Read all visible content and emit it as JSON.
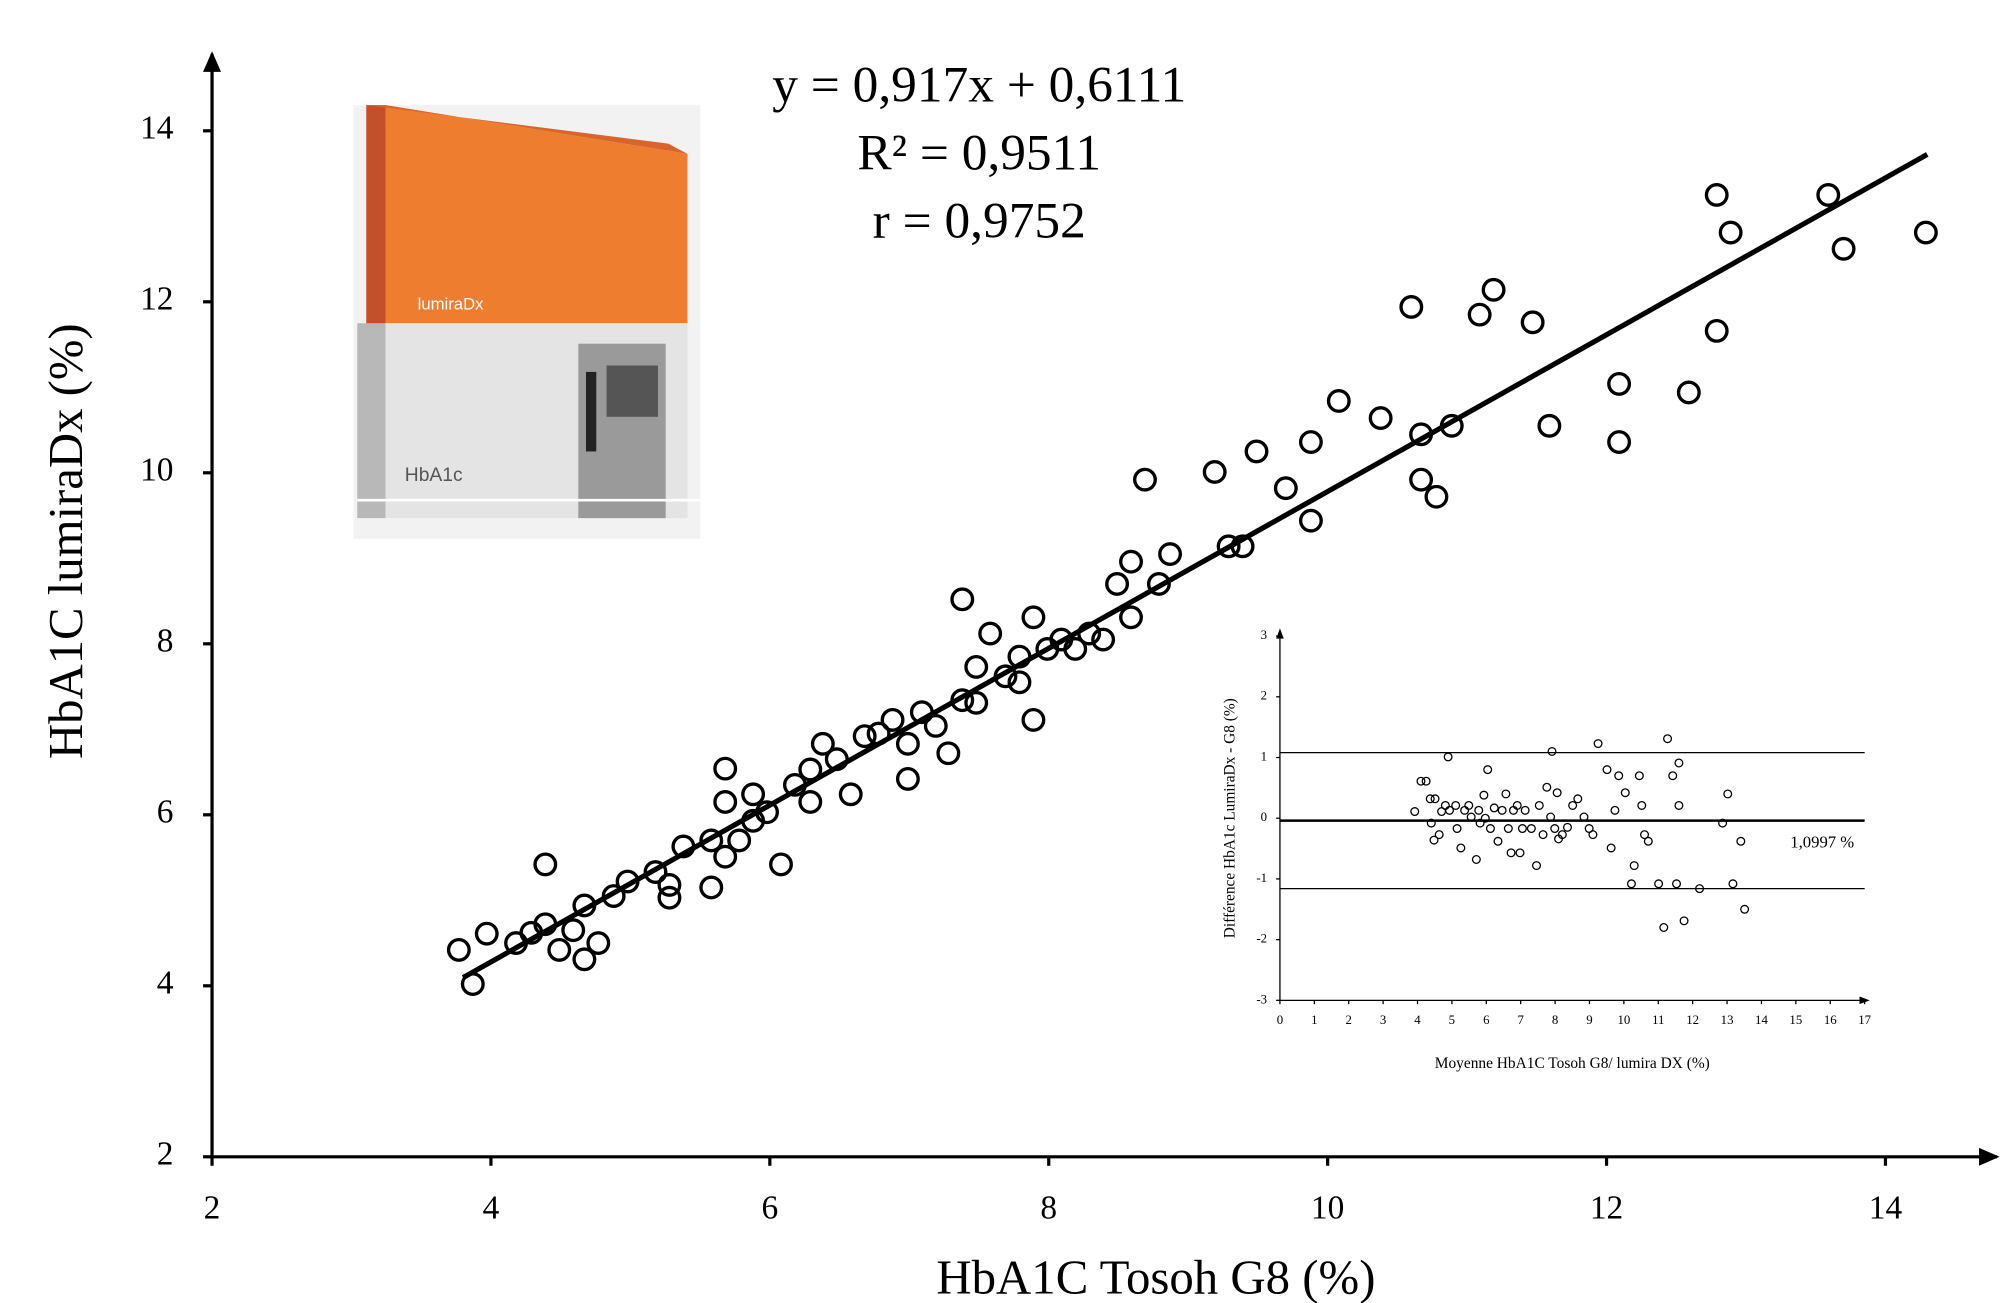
{
  "chart_data": [
    {
      "type": "scatter",
      "annotations": [
        "y = 0,917x + 0,6111",
        "R² = 0,9511",
        "r = 0,9752"
      ],
      "x_label": "HbA1C Tosoh G8 (%)",
      "y_label": "HbA1C lumiraDx (%)",
      "xlim": [
        2,
        14.8
      ],
      "ylim": [
        2,
        14.9
      ],
      "xticks": [
        2,
        4,
        6,
        8,
        10,
        12,
        14
      ],
      "yticks": [
        2,
        4,
        6,
        8,
        10,
        12,
        14
      ],
      "color": "#000000",
      "marker": "open-circle",
      "fit": {
        "slope": 0.917,
        "intercept": 0.6111,
        "x_range": [
          3.8,
          14.3
        ]
      },
      "x": [
        3.77,
        3.87,
        3.97,
        4.18,
        4.29,
        4.39,
        4.39,
        4.49,
        4.59,
        4.67,
        4.67,
        4.77,
        4.88,
        4.98,
        5.18,
        5.28,
        5.28,
        5.38,
        5.58,
        5.58,
        5.68,
        5.68,
        5.68,
        5.78,
        5.88,
        5.88,
        5.98,
        6.08,
        6.18,
        6.29,
        6.29,
        6.38,
        6.48,
        6.58,
        6.68,
        6.78,
        6.88,
        6.99,
        6.99,
        7.09,
        7.19,
        7.28,
        7.38,
        7.38,
        7.48,
        7.48,
        7.58,
        7.69,
        7.79,
        7.79,
        7.89,
        7.89,
        7.99,
        8.09,
        8.19,
        8.29,
        8.39,
        8.49,
        8.59,
        8.59,
        8.69,
        8.79,
        8.87,
        9.19,
        9.29,
        9.39,
        9.49,
        9.7,
        9.88,
        9.88,
        10.08,
        10.38,
        10.6,
        10.67,
        10.67,
        10.78,
        10.89,
        11.09,
        11.19,
        11.47,
        11.59,
        12.09,
        12.09,
        12.59,
        12.79,
        12.79,
        12.89,
        13.59,
        13.7,
        14.29
      ],
      "values": [
        4.42,
        4.02,
        4.61,
        4.5,
        4.62,
        5.42,
        4.72,
        4.42,
        4.65,
        4.31,
        4.94,
        4.5,
        5.05,
        5.22,
        5.33,
        5.18,
        5.03,
        5.63,
        5.15,
        5.7,
        5.51,
        6.15,
        6.54,
        5.7,
        5.93,
        6.24,
        6.03,
        5.42,
        6.35,
        6.15,
        6.53,
        6.83,
        6.65,
        6.24,
        6.92,
        6.95,
        7.11,
        6.42,
        6.83,
        7.2,
        7.04,
        6.72,
        7.34,
        8.52,
        7.73,
        7.31,
        8.12,
        7.62,
        7.85,
        7.55,
        8.31,
        7.11,
        7.94,
        8.05,
        7.94,
        8.12,
        8.05,
        8.7,
        8.96,
        8.31,
        9.92,
        8.7,
        9.05,
        10.01,
        9.14,
        9.14,
        10.25,
        9.82,
        10.36,
        9.44,
        10.84,
        10.64,
        11.94,
        10.45,
        9.92,
        9.72,
        10.55,
        11.85,
        12.14,
        11.76,
        10.55,
        11.04,
        10.36,
        10.94,
        11.66,
        13.25,
        12.81,
        13.25,
        12.62,
        12.81
      ]
    },
    {
      "type": "scatter",
      "x_label": "Moyenne HbA1C Tosoh G8/ lumira DX (%)",
      "y_label": "Différence HbA1c LumiraDx - G8 (%)",
      "xlim": [
        0,
        17
      ],
      "ylim": [
        -3,
        3
      ],
      "xticks": [
        0,
        1,
        2,
        3,
        4,
        5,
        6,
        7,
        8,
        9,
        10,
        11,
        12,
        13,
        14,
        15,
        16,
        17
      ],
      "yticks": [
        -3,
        -2,
        -1,
        0,
        1,
        2,
        3
      ],
      "color": "#000000",
      "marker": "open-circle",
      "reference_lines": [
        1.08,
        -0.04,
        -1.16
      ],
      "annotation": "1,0997 %",
      "x": [
        3.92,
        4.1,
        4.25,
        4.37,
        4.51,
        4.4,
        4.48,
        4.63,
        4.7,
        4.81,
        4.89,
        4.93,
        5.11,
        5.15,
        5.26,
        5.37,
        5.49,
        5.56,
        5.71,
        5.78,
        5.82,
        5.93,
        6.04,
        5.97,
        6.12,
        6.23,
        6.34,
        6.46,
        6.57,
        6.64,
        6.72,
        6.79,
        6.9,
        6.98,
        7.05,
        7.13,
        7.31,
        7.46,
        7.54,
        7.65,
        7.76,
        7.87,
        7.91,
        7.99,
        8.06,
        8.1,
        8.21,
        8.36,
        8.51,
        8.66,
        8.84,
        8.99,
        9.1,
        9.25,
        9.51,
        9.63,
        9.74,
        9.85,
        10.04,
        10.22,
        10.3,
        10.45,
        10.52,
        10.6,
        10.71,
        11.01,
        11.16,
        11.27,
        11.42,
        11.53,
        11.6,
        11.6,
        11.75,
        12.2,
        12.87,
        13.02,
        13.17,
        13.4,
        13.51
      ],
      "values": [
        0.11,
        0.61,
        0.61,
        0.32,
        0.32,
        -0.08,
        -0.36,
        -0.27,
        0.11,
        0.21,
        1.01,
        0.13,
        0.21,
        -0.17,
        -0.49,
        0.13,
        0.21,
        0.02,
        -0.68,
        0.13,
        -0.08,
        0.38,
        0.8,
        0,
        -0.17,
        0.17,
        -0.38,
        0.13,
        0.4,
        -0.17,
        -0.57,
        0.13,
        0.21,
        -0.57,
        -0.17,
        0.13,
        -0.17,
        -0.78,
        0.21,
        -0.27,
        0.51,
        0.02,
        1.1,
        -0.17,
        0.42,
        -0.34,
        -0.27,
        -0.15,
        0.21,
        0.32,
        0.02,
        -0.17,
        -0.27,
        1.23,
        0.8,
        -0.49,
        0.13,
        0.7,
        0.42,
        -1.08,
        -0.78,
        0.7,
        0.21,
        -0.27,
        -0.38,
        -1.08,
        -1.8,
        1.31,
        0.7,
        -1.08,
        0.91,
        0.21,
        -1.69,
        -1.16,
        -0.08,
        0.4,
        -1.08,
        -0.38,
        -1.5
      ]
    }
  ],
  "product_image": {
    "brand": "lumiraDx",
    "label": "HbA1c"
  }
}
